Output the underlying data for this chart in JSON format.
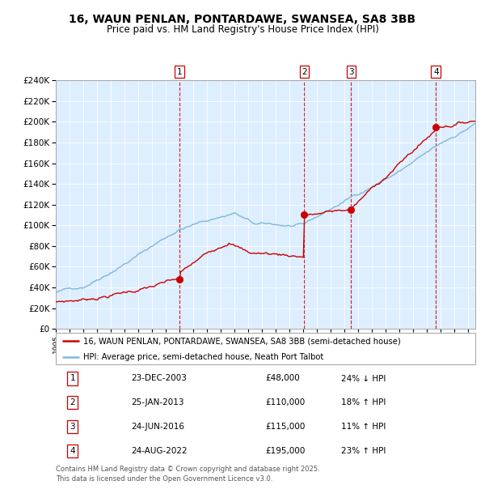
{
  "title": "16, WAUN PENLAN, PONTARDAWE, SWANSEA, SA8 3BB",
  "subtitle": "Price paid vs. HM Land Registry's House Price Index (HPI)",
  "legend_line1": "16, WAUN PENLAN, PONTARDAWE, SWANSEA, SA8 3BB (semi-detached house)",
  "legend_line2": "HPI: Average price, semi-detached house, Neath Port Talbot",
  "footer": "Contains HM Land Registry data © Crown copyright and database right 2025.\nThis data is licensed under the Open Government Licence v3.0.",
  "sales": [
    {
      "num": 1,
      "date": "23-DEC-2003",
      "price": 48000,
      "pct": "24%",
      "dir": "↓"
    },
    {
      "num": 2,
      "date": "25-JAN-2013",
      "price": 110000,
      "pct": "18%",
      "dir": "↑"
    },
    {
      "num": 3,
      "date": "24-JUN-2016",
      "price": 115000,
      "pct": "11%",
      "dir": "↑"
    },
    {
      "num": 4,
      "date": "24-AUG-2022",
      "price": 195000,
      "pct": "23%",
      "dir": "↑"
    }
  ],
  "sale_dates_decimal": [
    2003.978,
    2013.069,
    2016.478,
    2022.644
  ],
  "hpi_color": "#7fb8d8",
  "price_color": "#cc0000",
  "vline_color": "#cc0000",
  "plot_bg": "#ddeeff",
  "ylim": [
    0,
    240000
  ],
  "xlim_start": 1995.0,
  "xlim_end": 2025.5,
  "ytick_step": 20000
}
